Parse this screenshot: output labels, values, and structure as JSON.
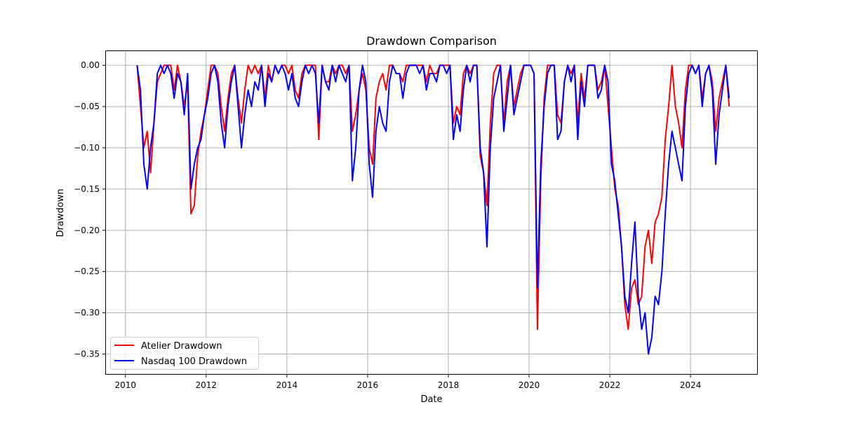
{
  "chart_data": {
    "type": "line",
    "title": "Drawdown Comparison",
    "xlabel": "Date",
    "ylabel": "Drawdown",
    "xlim": [
      "2009-07",
      "2025-09"
    ],
    "ylim": [
      -0.375,
      0.018
    ],
    "x_ticks": [
      "2010",
      "2012",
      "2014",
      "2016",
      "2018",
      "2020",
      "2022",
      "2024"
    ],
    "y_ticks": [
      "0.00",
      "−0.05",
      "−0.10",
      "−0.15",
      "−0.20",
      "−0.25",
      "−0.30",
      "−0.35"
    ],
    "y_tick_values": [
      0,
      -0.05,
      -0.1,
      -0.15,
      -0.2,
      -0.25,
      -0.3,
      -0.35
    ],
    "grid": true,
    "legend_position": "lower-left",
    "start": "2010-04",
    "series": [
      {
        "name": "Atelier Drawdown",
        "color": "#ff0000",
        "values": [
          0,
          -0.05,
          -0.1,
          -0.08,
          -0.13,
          -0.07,
          -0.02,
          -0.01,
          0,
          0,
          0,
          -0.03,
          0,
          -0.02,
          -0.05,
          -0.02,
          -0.18,
          -0.17,
          -0.11,
          -0.08,
          -0.06,
          -0.03,
          0,
          0,
          -0.01,
          -0.05,
          -0.08,
          -0.04,
          -0.01,
          0,
          -0.04,
          -0.07,
          -0.03,
          0,
          -0.01,
          0,
          -0.01,
          0,
          -0.04,
          0,
          -0.02,
          0,
          -0.01,
          0,
          0,
          -0.01,
          0,
          -0.03,
          -0.04,
          -0.01,
          0,
          0,
          0,
          0,
          -0.09,
          0,
          -0.02,
          -0.02,
          0,
          -0.01,
          0,
          0,
          -0.01,
          0,
          -0.08,
          -0.06,
          -0.03,
          -0.01,
          -0.03,
          -0.1,
          -0.12,
          -0.04,
          -0.02,
          -0.01,
          -0.03,
          0,
          0,
          -0.01,
          -0.01,
          -0.02,
          0,
          0,
          0,
          0,
          0,
          0,
          -0.02,
          0,
          -0.01,
          -0.01,
          0,
          0,
          0,
          0,
          -0.07,
          -0.05,
          -0.06,
          -0.01,
          0,
          -0.01,
          0,
          0,
          -0.11,
          -0.13,
          -0.17,
          -0.07,
          -0.01,
          0,
          0,
          -0.07,
          -0.02,
          0,
          -0.05,
          -0.03,
          -0.01,
          0,
          0,
          0,
          -0.01,
          -0.32,
          -0.14,
          -0.04,
          0,
          0,
          0,
          -0.06,
          -0.07,
          -0.02,
          0,
          -0.01,
          0,
          -0.07,
          -0.01,
          -0.04,
          0,
          0,
          0,
          -0.03,
          -0.02,
          0,
          -0.05,
          -0.1,
          -0.15,
          -0.17,
          -0.22,
          -0.29,
          -0.32,
          -0.27,
          -0.26,
          -0.29,
          -0.28,
          -0.22,
          -0.2,
          -0.24,
          -0.19,
          -0.18,
          -0.16,
          -0.09,
          -0.05,
          0,
          -0.05,
          -0.07,
          -0.1,
          -0.03,
          0,
          0,
          -0.01,
          0,
          -0.04,
          -0.01,
          0,
          -0.02,
          -0.08,
          -0.04,
          -0.02,
          0,
          -0.05
        ]
      },
      {
        "name": "Nasdaq 100 Drawdown",
        "color": "#0000ff",
        "values": [
          0,
          -0.03,
          -0.12,
          -0.15,
          -0.1,
          -0.07,
          -0.01,
          0,
          -0.01,
          0,
          -0.01,
          -0.04,
          -0.01,
          -0.02,
          -0.06,
          -0.01,
          -0.15,
          -0.12,
          -0.1,
          -0.09,
          -0.06,
          -0.04,
          -0.01,
          0,
          -0.02,
          -0.07,
          -0.1,
          -0.05,
          -0.02,
          0,
          -0.05,
          -0.1,
          -0.06,
          -0.03,
          -0.05,
          -0.02,
          -0.03,
          0,
          -0.05,
          -0.01,
          -0.02,
          0,
          -0.01,
          0,
          -0.01,
          -0.03,
          -0.01,
          -0.04,
          -0.05,
          -0.02,
          0,
          -0.01,
          0,
          -0.01,
          -0.07,
          0,
          -0.02,
          -0.03,
          0,
          -0.02,
          0,
          -0.01,
          -0.02,
          0,
          -0.14,
          -0.1,
          -0.03,
          0,
          -0.02,
          -0.12,
          -0.16,
          -0.08,
          -0.05,
          -0.07,
          -0.08,
          -0.02,
          0,
          -0.01,
          -0.01,
          -0.04,
          -0.01,
          0,
          0,
          0,
          -0.01,
          0,
          -0.03,
          -0.01,
          -0.01,
          -0.02,
          0,
          0,
          -0.01,
          0,
          -0.09,
          -0.06,
          -0.08,
          -0.03,
          0,
          -0.02,
          0,
          0,
          -0.1,
          -0.13,
          -0.22,
          -0.1,
          -0.04,
          -0.02,
          0,
          -0.08,
          -0.04,
          0,
          -0.06,
          -0.04,
          -0.02,
          0,
          0,
          0,
          -0.01,
          -0.27,
          -0.12,
          -0.05,
          -0.01,
          0,
          0,
          -0.09,
          -0.08,
          -0.02,
          0,
          -0.02,
          0,
          -0.09,
          -0.02,
          -0.05,
          0,
          0,
          0,
          -0.04,
          -0.03,
          0,
          -0.02,
          -0.12,
          -0.14,
          -0.18,
          -0.22,
          -0.28,
          -0.3,
          -0.24,
          -0.19,
          -0.28,
          -0.32,
          -0.3,
          -0.35,
          -0.33,
          -0.28,
          -0.29,
          -0.25,
          -0.18,
          -0.12,
          -0.08,
          -0.1,
          -0.12,
          -0.14,
          -0.05,
          -0.01,
          0,
          -0.01,
          0,
          -0.05,
          -0.01,
          0,
          -0.03,
          -0.12,
          -0.06,
          -0.03,
          0,
          -0.04
        ]
      }
    ]
  }
}
